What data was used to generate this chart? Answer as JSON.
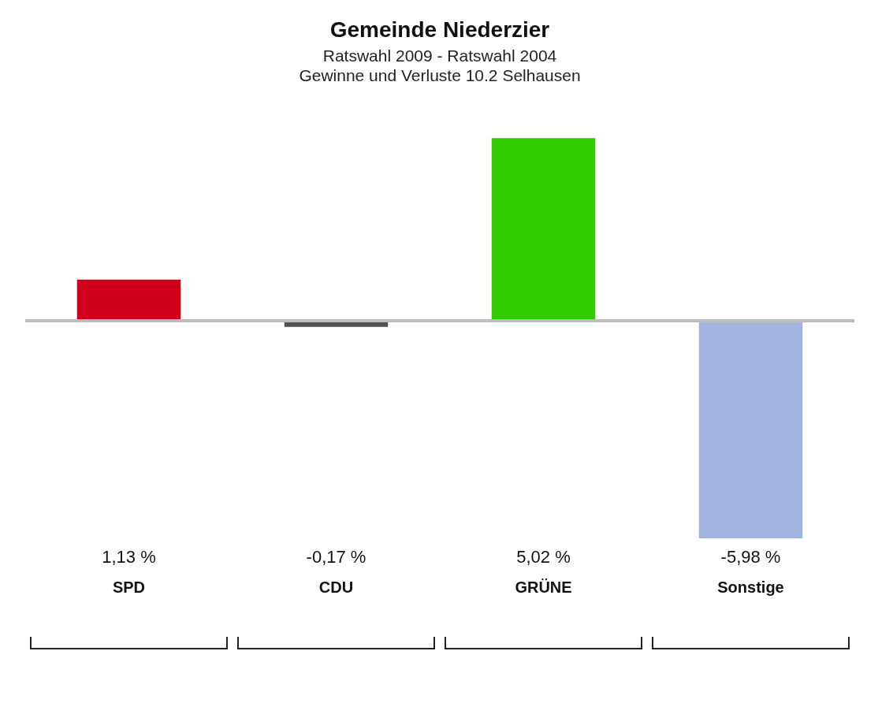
{
  "chart_data": {
    "type": "bar",
    "title": "Gemeinde Niederzier",
    "subtitle": "Ratswahl 2009 - Ratswahl 2004\nGewinne und Verluste 10.2 Selhausen",
    "categories": [
      "SPD",
      "CDU",
      "GRÜNE",
      "Sonstige"
    ],
    "values": [
      1.13,
      -0.17,
      5.02,
      -5.98
    ],
    "colors": [
      "#d0001a",
      "#505050",
      "#33cc00",
      "#a3b3df"
    ],
    "value_labels": [
      "1,13 %",
      "-0,17 %",
      "5,02 %",
      "-5,98 %"
    ],
    "grid": false,
    "legend": false
  }
}
